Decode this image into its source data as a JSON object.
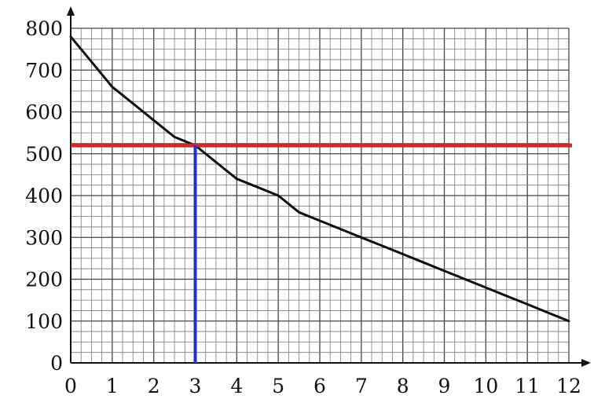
{
  "chart_data": {
    "type": "line",
    "title": "",
    "xlabel": "",
    "ylabel": "",
    "xlim": [
      0,
      12
    ],
    "ylim": [
      0,
      800
    ],
    "grid": true,
    "x_ticks": [
      "0",
      "1",
      "2",
      "3",
      "4",
      "5",
      "6",
      "7",
      "8",
      "9",
      "10",
      "11",
      "12"
    ],
    "y_ticks": [
      "0",
      "100",
      "200",
      "300",
      "400",
      "500",
      "600",
      "700",
      "800"
    ],
    "series": [
      {
        "color": "#111111",
        "x": [
          0,
          0.5,
          1,
          1.5,
          2,
          2.5,
          3,
          3.5,
          4,
          4.5,
          5,
          5.5,
          6,
          6.5,
          7,
          7.5,
          8,
          8.5,
          9,
          9.5,
          10,
          10.5,
          11,
          11.5,
          12
        ],
        "y": [
          780,
          720,
          660,
          620,
          580,
          540,
          520,
          480,
          440,
          420,
          400,
          360,
          340,
          320,
          300,
          280,
          260,
          240,
          220,
          200,
          180,
          160,
          140,
          120,
          100
        ]
      }
    ],
    "annotations": [
      {
        "type": "hline",
        "y": 520,
        "color": "#cc2a2a"
      },
      {
        "type": "vline",
        "x": 3,
        "y_to": 520,
        "color": "#1f2fd0"
      }
    ]
  }
}
